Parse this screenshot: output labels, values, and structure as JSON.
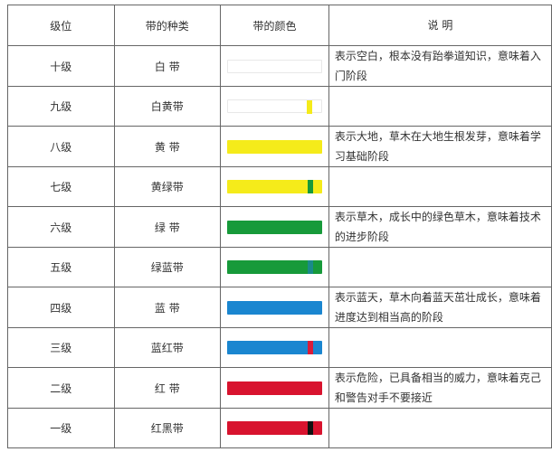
{
  "headers": [
    "级位",
    "带的种类",
    "带的颜色",
    "说  明"
  ],
  "rows": [
    {
      "level": "十级",
      "belt": "白  带",
      "color": "#ffffff",
      "stripe": null,
      "desc": "表示空白，根本没有跆拳道知识，意味着入门阶段"
    },
    {
      "level": "九级",
      "belt": "白黄带",
      "color": "#ffffff",
      "stripe": "#f5eb1a",
      "desc": ""
    },
    {
      "level": "八级",
      "belt": "黄  带",
      "color": "#f5eb1a",
      "stripe": null,
      "desc": "表示大地，草木在大地生根发芽，意味着学习基础阶段"
    },
    {
      "level": "七级",
      "belt": "黄绿带",
      "color": "#f5eb1a",
      "stripe": "#179a3a",
      "desc": ""
    },
    {
      "level": "六级",
      "belt": "绿  带",
      "color": "#179a3a",
      "stripe": null,
      "desc": "表示草木，成长中的绿色草木，意味着技术的进步阶段"
    },
    {
      "level": "五级",
      "belt": "绿蓝带",
      "color": "#179a3a",
      "stripe": "#1a8a8a",
      "desc": ""
    },
    {
      "level": "四级",
      "belt": "蓝  带",
      "color": "#1a86d0",
      "stripe": null,
      "desc": "表示蓝天，草木向着蓝天茁壮成长，意味着进度达到相当高的阶段"
    },
    {
      "level": "三级",
      "belt": "蓝红带",
      "color": "#1a86d0",
      "stripe": "#d81c3a",
      "desc": ""
    },
    {
      "level": "二级",
      "belt": "红  带",
      "color": "#d8132e",
      "stripe": null,
      "desc": "表示危险，已具备相当的威力，意味着克己和警告对手不要接近"
    },
    {
      "level": "一级",
      "belt": "红黑带",
      "color": "#d8132e",
      "stripe": "#111111",
      "desc": ""
    }
  ]
}
